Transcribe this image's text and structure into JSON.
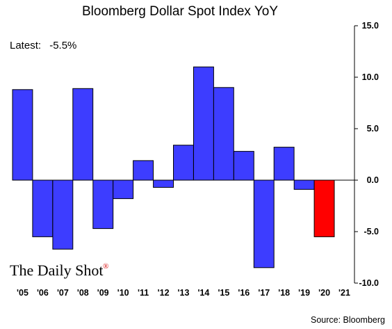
{
  "chart_data": {
    "type": "bar",
    "title": "Bloomberg Dollar Spot Index YoY",
    "annotation_label": "Latest:",
    "annotation_value": "-5.5%",
    "categories": [
      "'05",
      "'06",
      "'07",
      "'08",
      "'09",
      "'10",
      "'11",
      "'12",
      "'13",
      "'14",
      "'15",
      "'16",
      "'17",
      "'18",
      "'19",
      "'20",
      "'21"
    ],
    "values": [
      8.8,
      -5.5,
      -6.7,
      8.9,
      -4.7,
      -1.8,
      1.9,
      -0.7,
      3.4,
      11.0,
      9.0,
      2.8,
      -8.5,
      3.2,
      -0.9,
      -5.5,
      null
    ],
    "highlight_index": 15,
    "bar_color": "#3d3dff",
    "highlight_color": "#ff0000",
    "ylim": [
      -10,
      15
    ],
    "yticks": [
      "15.0",
      "10.0",
      "5.0",
      "0.0",
      "-5.0",
      "-10.0"
    ],
    "ytick_values": [
      15,
      10,
      5,
      0,
      -5,
      -10
    ],
    "y_axis_position": "right",
    "grid": false,
    "source": "Source: Bloomberg",
    "logo": "The Daily Shot",
    "logo_mark": "®"
  }
}
